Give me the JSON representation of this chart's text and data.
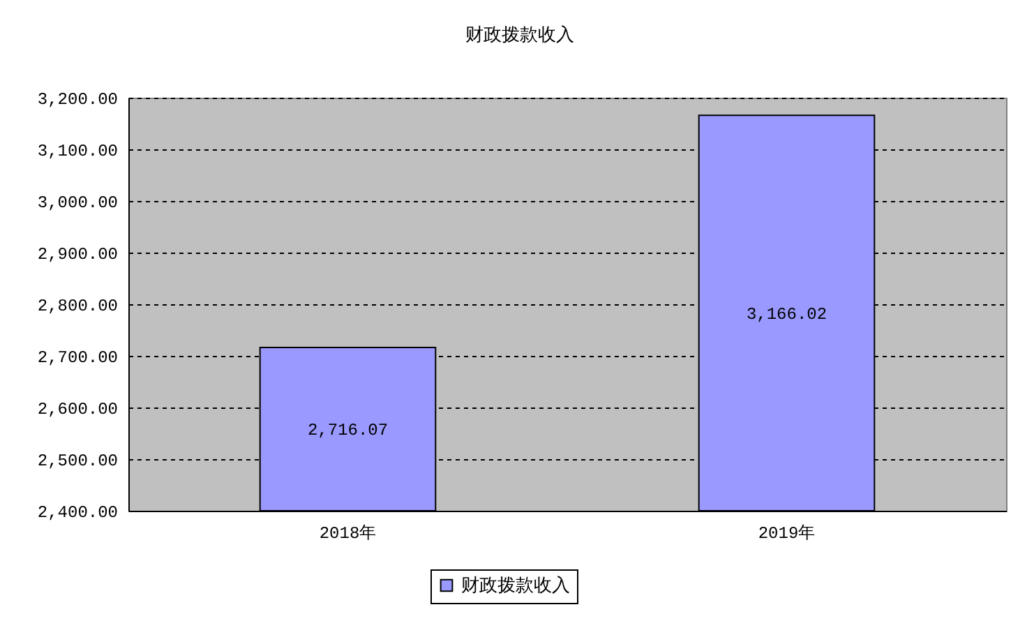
{
  "chart_data": {
    "type": "bar",
    "title": "财政拨款收入",
    "categories": [
      "2018年",
      "2019年"
    ],
    "series": [
      {
        "name": "财政拨款收入",
        "color": "#9999ff",
        "values": [
          2716.07,
          3166.02
        ],
        "value_labels": [
          "2,716.07",
          "3,166.02"
        ]
      }
    ],
    "ylim": [
      2400,
      3200
    ],
    "yticks": [
      {
        "value": 2400,
        "label": "2,400.00"
      },
      {
        "value": 2500,
        "label": "2,500.00"
      },
      {
        "value": 2600,
        "label": "2,600.00"
      },
      {
        "value": 2700,
        "label": "2,700.00"
      },
      {
        "value": 2800,
        "label": "2,800.00"
      },
      {
        "value": 2900,
        "label": "2,900.00"
      },
      {
        "value": 3000,
        "label": "3,000.00"
      },
      {
        "value": 3100,
        "label": "3,100.00"
      },
      {
        "value": 3200,
        "label": "3,200.00"
      }
    ],
    "grid": "y",
    "legend": "bottom"
  }
}
